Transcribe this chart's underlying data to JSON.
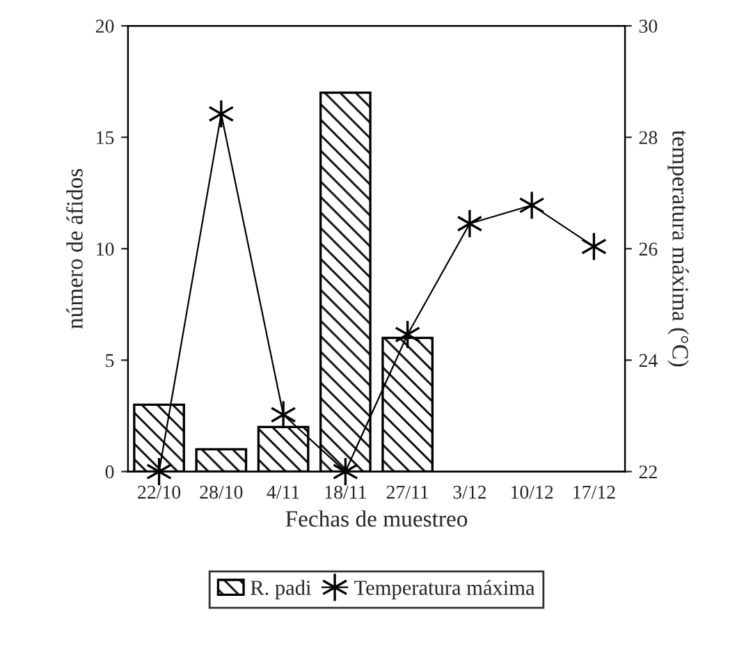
{
  "chart_data": {
    "type": "bar",
    "categories": [
      "22/10",
      "28/10",
      "4/11",
      "18/11",
      "27/11",
      "3/12",
      "10/12",
      "17/12"
    ],
    "xlabel": "Fechas de muestreo",
    "ylabel": "número de áfidos",
    "y2label": "temperatura máxima (°C)",
    "ylim": [
      0,
      20
    ],
    "yticks": [
      0,
      5,
      10,
      15,
      20
    ],
    "y2lim": [
      22,
      30
    ],
    "y2ticks": [
      22,
      24,
      26,
      28,
      30
    ],
    "legend": "bottom",
    "grid": false,
    "series": [
      {
        "name": "R. padi",
        "color": "#000000",
        "values": [
          3,
          1,
          2,
          17,
          6,
          null,
          null,
          null
        ]
      },
      {
        "name": "Temperatura máxima",
        "type": "line",
        "axis": "y2",
        "color": "#000000",
        "marker": "cross",
        "values": [
          22.0,
          28.42,
          23.02,
          22.0,
          24.46,
          26.45,
          26.78,
          26.04
        ]
      }
    ]
  }
}
